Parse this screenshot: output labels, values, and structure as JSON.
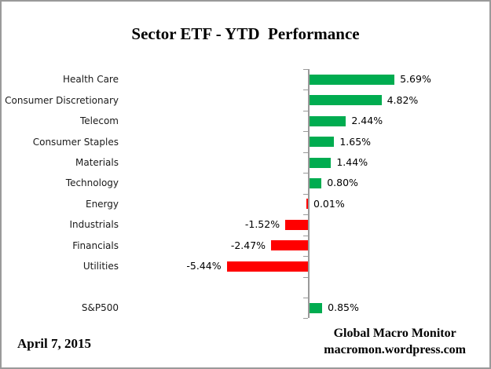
{
  "title": "Sector ETF - YTD  Performance",
  "footer": {
    "date": "April 7, 2015",
    "credit_line1": "Global Macro Monitor",
    "credit_line2": "macromon.wordpress.com"
  },
  "colors": {
    "positive": "#00AC50",
    "negative": "#FF0000",
    "axis": "#9a9a9a"
  },
  "chart_data": {
    "type": "bar",
    "orientation": "horizontal",
    "title": "Sector ETF - YTD  Performance",
    "xlabel": "",
    "ylabel": "",
    "grid": false,
    "legend": "none",
    "value_unit": "percent",
    "xlim": [
      -5.7,
      5.7
    ],
    "categories": [
      "Health Care",
      "Consumer Discretionary",
      "Telecom",
      "Consumer Staples",
      "Materials",
      "Technology",
      "Energy",
      "Industrials",
      "Financials",
      "Utilities",
      "S&P500"
    ],
    "values": [
      5.69,
      4.82,
      2.44,
      1.65,
      1.44,
      0.8,
      0.01,
      -1.52,
      -2.47,
      -5.44,
      0.85
    ],
    "value_labels": [
      "5.69%",
      "4.82%",
      "2.44%",
      "1.65%",
      "1.44%",
      "0.80%",
      "0.01%",
      "-1.52%",
      "-2.47%",
      "-5.44%",
      "0.85%"
    ],
    "bar_colors": [
      "green",
      "green",
      "green",
      "green",
      "green",
      "green",
      "red",
      "red",
      "red",
      "red",
      "green"
    ],
    "gap_row_before_last": true
  }
}
